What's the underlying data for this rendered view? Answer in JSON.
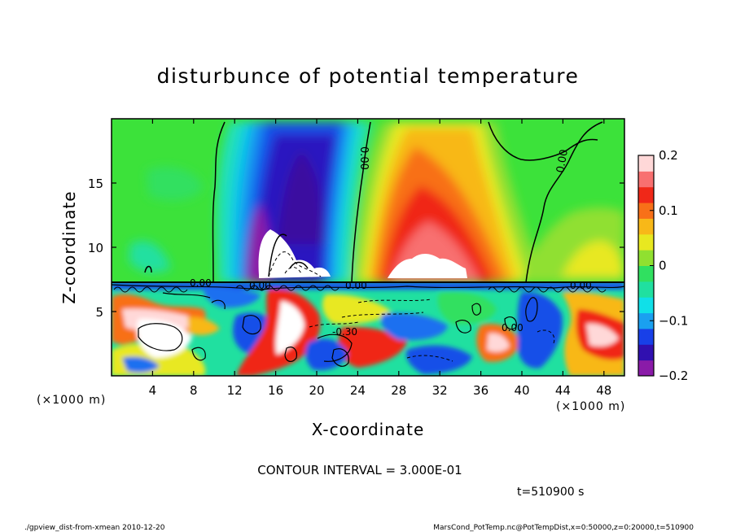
{
  "chart_data": {
    "type": "heatmap",
    "title": "disturbunce of potential temperature",
    "xlabel": "X-coordinate",
    "ylabel": "Z-coordinate",
    "x_unit": "(×1000 m)",
    "y_unit": "(×1000 m)",
    "xlim": [
      0,
      50
    ],
    "ylim": [
      0,
      20
    ],
    "x_ticks": [
      4,
      8,
      12,
      16,
      20,
      24,
      28,
      32,
      36,
      40,
      44,
      48
    ],
    "y_ticks": [
      5,
      10,
      15
    ],
    "colorbar": {
      "min": -0.2,
      "max": 0.2,
      "ticks": [
        0.2,
        0.1,
        0,
        -0.1,
        -0.2
      ],
      "tick_labels": [
        "0.2",
        "0.1",
        "0",
        "−0.1",
        "−0.2"
      ],
      "colors": [
        "#8a1ba8",
        "#3010b0",
        "#1840e8",
        "#1aa0f0",
        "#10e0e8",
        "#20e0a0",
        "#30e060",
        "#90e030",
        "#e8e820",
        "#f8b818",
        "#f87018",
        "#f02818",
        "#f87070",
        "#ffd8d8"
      ]
    },
    "contour_interval_text": "CONTOUR INTERVAL = 3.000E-01",
    "contour_labels": [
      "0.00",
      "0.00",
      "0.00",
      "0.00",
      "0.00",
      "0.00",
      "-0.30",
      "0.00"
    ],
    "features": [
      {
        "kind": "cold plume",
        "x_center": 18,
        "z_top": 20,
        "z_bottom": 7.3,
        "value_min": -0.2
      },
      {
        "kind": "warm plume",
        "x_center": 29,
        "z_top": 17,
        "z_bottom": 7.3,
        "value_max": 0.2
      },
      {
        "kind": "warm patch upper right",
        "x_center": 47,
        "z_center": 9,
        "value": 0.05
      }
    ],
    "interface_z": 7.3,
    "time_label": "t=510900 s"
  },
  "footer": {
    "left": "./gpview_dist-from-xmean  2010-12-20",
    "right": "MarsCond_PotTemp.nc@PotTempDist,x=0:50000,z=0:20000,t=510900"
  }
}
